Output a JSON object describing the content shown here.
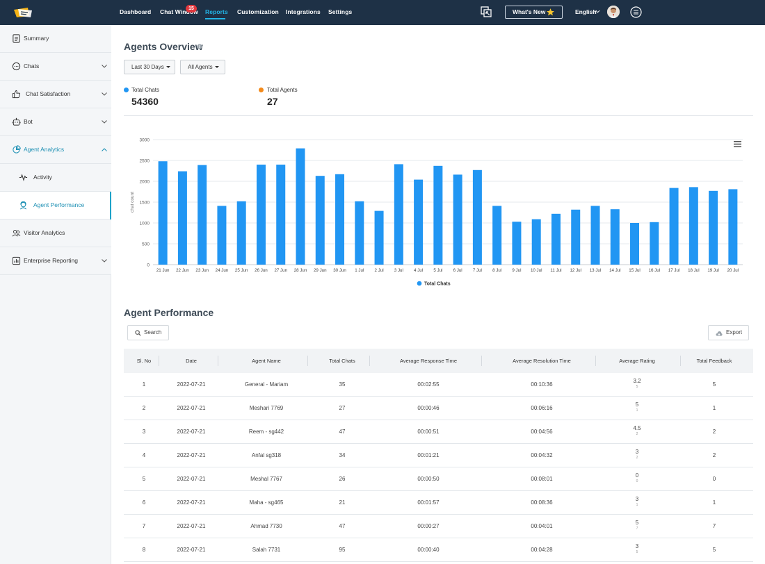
{
  "nav": {
    "items": [
      "Dashboard",
      "Chat Window",
      "Reports",
      "Customization",
      "Integrations",
      "Settings"
    ],
    "badge": "15",
    "whats_new": "What's New",
    "language": "English"
  },
  "sidebar": {
    "items": [
      {
        "label": "Summary",
        "icon": "summary-icon"
      },
      {
        "label": "Chats",
        "icon": "chat-icon"
      },
      {
        "label": "Chat Satisfaction",
        "icon": "thumbs-up-icon"
      },
      {
        "label": "Bot",
        "icon": "bot-icon"
      },
      {
        "label": "Agent Analytics",
        "icon": "analytics-icon"
      },
      {
        "label": "Activity",
        "icon": "activity-icon"
      },
      {
        "label": "Agent Performance",
        "icon": "agent-icon"
      },
      {
        "label": "Visitor Analytics",
        "icon": "visitors-icon"
      },
      {
        "label": "Enterprise Reporting",
        "icon": "report-icon"
      }
    ]
  },
  "overview": {
    "title": "Agents Overview",
    "filter_date": "Last 30 Days",
    "filter_agents": "All Agents",
    "stats": [
      {
        "label": "Total Chats",
        "value": "54360",
        "color": "#2196f3"
      },
      {
        "label": "Total Agents",
        "value": "27",
        "color": "#f38a1b"
      }
    ]
  },
  "chart_data": {
    "type": "bar",
    "title": "",
    "xlabel": "",
    "ylabel": "chat count",
    "ylim": [
      0,
      3000
    ],
    "yticks": [
      0,
      500,
      1000,
      1500,
      2000,
      2500,
      3000
    ],
    "grid": true,
    "legend": "bottom-center",
    "categories": [
      "21 Jun",
      "22 Jun",
      "23 Jun",
      "24 Jun",
      "25 Jun",
      "26 Jun",
      "27 Jun",
      "28 Jun",
      "29 Jun",
      "30 Jun",
      "1 Jul",
      "2 Jul",
      "3 Jul",
      "4 Jul",
      "5 Jul",
      "6 Jul",
      "7 Jul",
      "8 Jul",
      "9 Jul",
      "10 Jul",
      "11 Jul",
      "12 Jul",
      "13 Jul",
      "14 Jul",
      "15 Jul",
      "16 Jul",
      "17 Jul",
      "18 Jul",
      "19 Jul",
      "20 Jul"
    ],
    "series": [
      {
        "name": "Total Chats",
        "color": "#2196f3",
        "values": [
          2480,
          2240,
          2390,
          1410,
          1520,
          2400,
          2400,
          2790,
          2130,
          2170,
          1520,
          1290,
          2410,
          2040,
          2370,
          2160,
          2270,
          1410,
          1030,
          1090,
          1220,
          1320,
          1410,
          1330,
          1000,
          1020,
          1840,
          1860,
          1770,
          1810
        ]
      }
    ]
  },
  "performance": {
    "title": "Agent Performance",
    "search": "Search",
    "export": "Export",
    "columns": [
      "Sl. No",
      "Date",
      "Agent Name",
      "Total Chats",
      "Average Response Time",
      "Average Resolution Time",
      "Average Rating",
      "Total Feedback"
    ],
    "rows": [
      {
        "no": "1",
        "date": "2022-07-21",
        "agent": "General - Mariam",
        "chats": "35",
        "resp": "00:02:55",
        "resol": "00:10:36",
        "rating": "3.2",
        "rating_sub": "5",
        "feedback": "5"
      },
      {
        "no": "2",
        "date": "2022-07-21",
        "agent": "Meshari 7769",
        "chats": "27",
        "resp": "00:00:46",
        "resol": "00:06:16",
        "rating": "5",
        "rating_sub": "1",
        "feedback": "1"
      },
      {
        "no": "3",
        "date": "2022-07-21",
        "agent": "Reem - sg442",
        "chats": "47",
        "resp": "00:00:51",
        "resol": "00:04:56",
        "rating": "4.5",
        "rating_sub": "2",
        "feedback": "2"
      },
      {
        "no": "4",
        "date": "2022-07-21",
        "agent": "Anfal sg318",
        "chats": "34",
        "resp": "00:01:21",
        "resol": "00:04:32",
        "rating": "3",
        "rating_sub": "2",
        "feedback": "2"
      },
      {
        "no": "5",
        "date": "2022-07-21",
        "agent": "Meshal 7767",
        "chats": "26",
        "resp": "00:00:50",
        "resol": "00:08:01",
        "rating": "0",
        "rating_sub": "0",
        "feedback": "0"
      },
      {
        "no": "6",
        "date": "2022-07-21",
        "agent": "Maha - sg465",
        "chats": "21",
        "resp": "00:01:57",
        "resol": "00:08:36",
        "rating": "3",
        "rating_sub": "1",
        "feedback": "1"
      },
      {
        "no": "7",
        "date": "2022-07-21",
        "agent": "Ahmad 7730",
        "chats": "47",
        "resp": "00:00:27",
        "resol": "00:04:01",
        "rating": "5",
        "rating_sub": "7",
        "feedback": "7"
      },
      {
        "no": "8",
        "date": "2022-07-21",
        "agent": "Salah 7731",
        "chats": "95",
        "resp": "00:00:40",
        "resol": "00:04:28",
        "rating": "3",
        "rating_sub": "5",
        "feedback": "5"
      }
    ]
  }
}
